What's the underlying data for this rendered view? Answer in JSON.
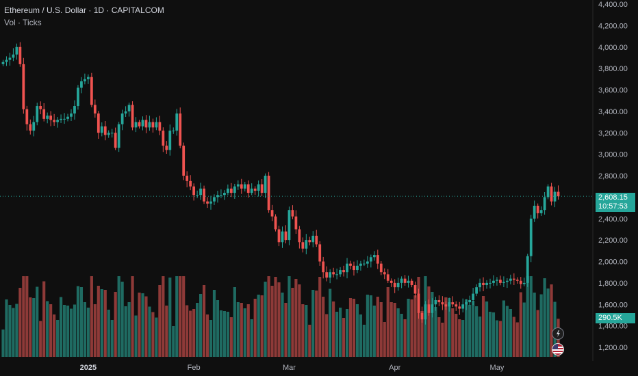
{
  "header": {
    "title": "Ethereum / U.S. Dollar · 1D · CAPITALCOM",
    "volume_label": "Vol · Ticks"
  },
  "price_tag": {
    "price": "2,608.15",
    "countdown": "10:57:53"
  },
  "volume_tag": "290.5K",
  "colors": {
    "up": "#26a69a",
    "down": "#ef5350",
    "vol_up": "#1f6b62",
    "vol_down": "#8e3a38",
    "background": "#0f0f0f"
  },
  "icons": [
    "replay-icon",
    "flag-icon"
  ],
  "chart_data": {
    "type": "candlestick",
    "y_ticks": [
      "4,400.00",
      "4,200.00",
      "4,000.00",
      "3,800.00",
      "3,600.00",
      "3,400.00",
      "3,200.00",
      "3,000.00",
      "2,800.00",
      "2,600.00",
      "2,400.00",
      "2,200.00",
      "2,000.00",
      "1,800.00",
      "1,600.00",
      "1,400.00",
      "1,200.00"
    ],
    "y_range": [
      1150,
      4430
    ],
    "x_ticks": [
      {
        "label": "2025",
        "index": 25,
        "bold": true
      },
      {
        "label": "Feb",
        "index": 56,
        "bold": false
      },
      {
        "label": "Mar",
        "index": 84,
        "bold": false
      },
      {
        "label": "Apr",
        "index": 115,
        "bold": false
      },
      {
        "label": "May",
        "index": 145,
        "bold": false
      }
    ],
    "last_price": 2608.15,
    "closes": [
      3860,
      3880,
      3900,
      3930,
      4000,
      3840,
      3420,
      3280,
      3220,
      3300,
      3450,
      3420,
      3330,
      3360,
      3320,
      3300,
      3320,
      3330,
      3330,
      3350,
      3380,
      3450,
      3620,
      3680,
      3700,
      3720,
      3460,
      3380,
      3200,
      3260,
      3180,
      3200,
      3200,
      3060,
      3280,
      3380,
      3400,
      3460,
      3250,
      3300,
      3260,
      3320,
      3250,
      3300,
      3250,
      3300,
      3220,
      3080,
      3040,
      3220,
      3220,
      3380,
      3080,
      2800,
      2750,
      2700,
      2620,
      2620,
      2680,
      2560,
      2540,
      2560,
      2600,
      2620,
      2620,
      2640,
      2680,
      2640,
      2700,
      2720,
      2680,
      2720,
      2640,
      2680,
      2660,
      2720,
      2640,
      2800,
      2480,
      2420,
      2300,
      2180,
      2280,
      2200,
      2480,
      2420,
      2300,
      2180,
      2120,
      2200,
      2180,
      2240,
      2160,
      2000,
      1900,
      1850,
      1900,
      1880,
      1880,
      1920,
      1900,
      1980,
      1960,
      1920,
      1960,
      1980,
      1980,
      2000,
      2040,
      2060,
      1980,
      1900,
      1880,
      1820,
      1800,
      1760,
      1800,
      1840,
      1800,
      1820,
      1780,
      1700,
      1520,
      1460,
      1600,
      1520,
      1600,
      1640,
      1620,
      1600,
      1580,
      1620,
      1600,
      1580,
      1560,
      1600,
      1620,
      1640,
      1700,
      1760,
      1800,
      1780,
      1800,
      1800,
      1820,
      1830,
      1800,
      1810,
      1820,
      1840,
      1830,
      1820,
      1790,
      1800,
      2050,
      2400,
      2520,
      2450,
      2480,
      2600,
      2700,
      2560,
      2650,
      2608
    ]
  }
}
